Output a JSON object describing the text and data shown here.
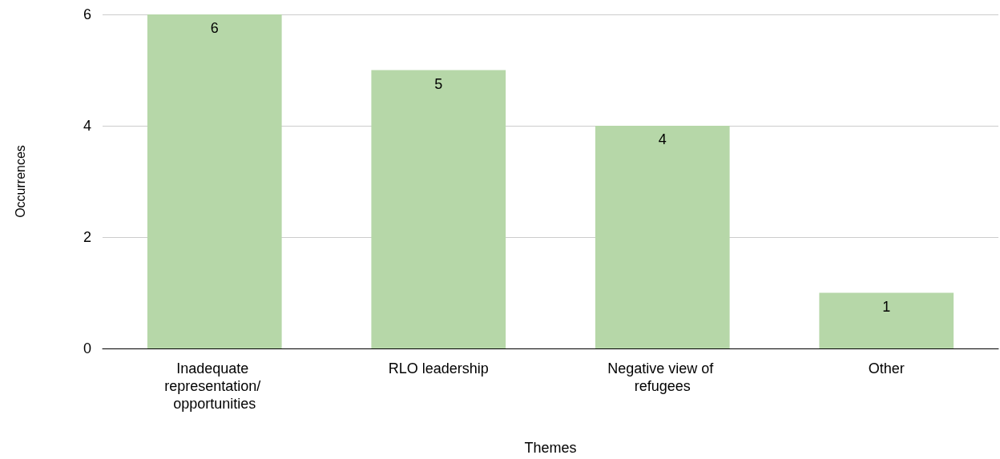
{
  "chart_data": {
    "type": "bar",
    "xlabel": "Themes",
    "ylabel": "Occurrences",
    "categories": [
      "Inadequate representation/ opportunities",
      "RLO leadership",
      "Negative view of refugees",
      "Other"
    ],
    "values": [
      6,
      5,
      4,
      1
    ],
    "color": "#b6d7a8",
    "ylim": [
      0,
      6
    ],
    "yticks": [
      0,
      2,
      4,
      6
    ],
    "grid": "y",
    "data_labels": true
  }
}
